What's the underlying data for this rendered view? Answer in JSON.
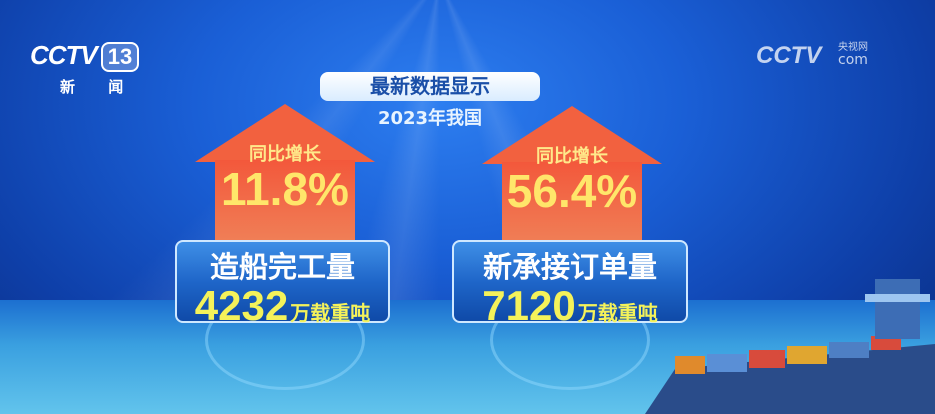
{
  "channel_logo": {
    "brand": "CCTV",
    "channel": "13",
    "name": "新 闻"
  },
  "watermark": {
    "brand": "CCTV",
    "cn": "央视网",
    "suffix": "com"
  },
  "title": "最新数据显示",
  "subtitle": "2023年我国",
  "stats": [
    {
      "growth_label": "同比增长",
      "growth": "11.8%",
      "name": "造船完工量",
      "value": "4232",
      "unit": "万载重吨"
    },
    {
      "growth_label": "同比增长",
      "growth": "56.4%",
      "name": "新承接订单量",
      "value": "7120",
      "unit": "万载重吨"
    }
  ],
  "colors": {
    "arrow": "#f2613f",
    "value": "#f4f25a",
    "background": "#1a5fd6"
  }
}
